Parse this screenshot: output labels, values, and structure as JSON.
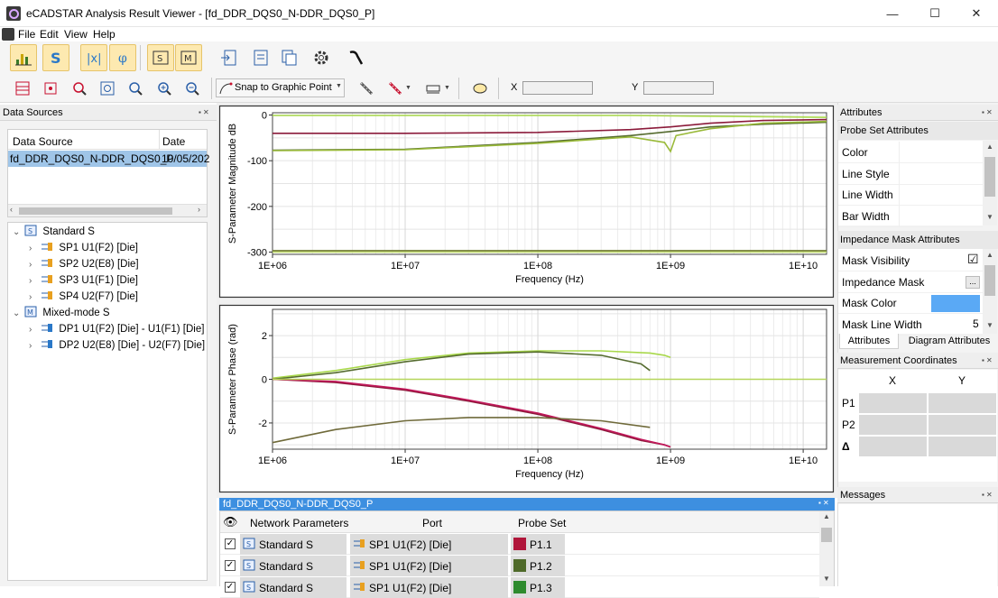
{
  "window": {
    "title": "eCADSTAR Analysis Result Viewer - [fd_DDR_DQS0_N-DDR_DQS0_P]",
    "minimize": "—",
    "maximize": "☐",
    "close": "✕"
  },
  "menu": [
    "File",
    "Edit",
    "View",
    "Help"
  ],
  "toolbar": {
    "snap_label": "Snap to Graphic Point",
    "x_label": "X",
    "y_label": "Y",
    "x_value": "",
    "y_value": ""
  },
  "data_sources": {
    "title": "Data Sources",
    "col_source": "Data Source",
    "col_date": "Date",
    "row_source": "fd_DDR_DQS0_N-DDR_DQS0_P",
    "row_date": "10/05/202",
    "tree": [
      {
        "label": "Standard S",
        "level": 0
      },
      {
        "label": "SP1 U1(F2) [Die]",
        "level": 1
      },
      {
        "label": "SP2 U2(E8) [Die]",
        "level": 1
      },
      {
        "label": "SP3 U1(F1) [Die]",
        "level": 1
      },
      {
        "label": "SP4 U2(F7) [Die]",
        "level": 1
      },
      {
        "label": "Mixed-mode S",
        "level": 0
      },
      {
        "label": "DP1 U1(F2) [Die] - U1(F1) [Die]",
        "level": 1
      },
      {
        "label": "DP2 U2(E8) [Die] - U2(F7) [Die]",
        "level": 1
      }
    ]
  },
  "chart_data": [
    {
      "type": "line",
      "title": "",
      "xlabel": "Frequency (Hz)",
      "ylabel": "S-Parameter Magnitude dB",
      "x_scale": "log",
      "x_ticks": [
        "1E+06",
        "1E+07",
        "1E+08",
        "1E+09",
        "1E+10"
      ],
      "y_ticks": [
        "0",
        "-100",
        "-200",
        "-300"
      ],
      "ylim": [
        -305,
        5
      ],
      "xlim": [
        1000000,
        15000000000
      ],
      "grid": true,
      "series": [
        {
          "color": "#a8d84a",
          "x": [
            1000000.0,
            10000000.0,
            100000000.0,
            500000000.0,
            1000000000.0,
            3000000000.0,
            15000000000.0
          ],
          "y": [
            -1,
            -1,
            -1,
            -1,
            -2,
            -3,
            -5
          ]
        },
        {
          "color": "#8b1a3a",
          "x": [
            1000000.0,
            10000000.0,
            100000000.0,
            500000000.0,
            1000000000.0,
            2000000000.0,
            5000000000.0,
            15000000000.0
          ],
          "y": [
            -40,
            -40,
            -38,
            -32,
            -26,
            -18,
            -12,
            -10
          ]
        },
        {
          "color": "#556b2f",
          "x": [
            1000000.0,
            10000000.0,
            100000000.0,
            500000000.0,
            1000000000.0,
            2000000000.0,
            5000000000.0,
            15000000000.0
          ],
          "y": [
            -77,
            -75,
            -60,
            -45,
            -36,
            -26,
            -20,
            -16
          ]
        },
        {
          "color": "#9aba3a",
          "x": [
            1000000.0,
            10000000.0,
            100000000.0,
            500000000.0,
            900000000.0,
            1000000000.0,
            1100000000.0,
            2000000000.0,
            5000000000.0,
            15000000000.0
          ],
          "y": [
            -78,
            -76,
            -62,
            -48,
            -60,
            -80,
            -45,
            -30,
            -18,
            -14
          ]
        },
        {
          "color": "#c4e070",
          "x": [
            1000000.0,
            10000000.0,
            100000000.0,
            1000000000.0,
            15000000000.0
          ],
          "y": [
            -300,
            -300,
            -300,
            -300,
            -300
          ]
        },
        {
          "color": "#6f7a2f",
          "x": [
            1000000.0,
            10000000.0,
            100000000.0,
            1000000000.0,
            15000000000.0
          ],
          "y": [
            -297,
            -297,
            -297,
            -297,
            -297
          ]
        }
      ]
    },
    {
      "type": "line",
      "title": "",
      "xlabel": "Frequency (Hz)",
      "ylabel": "S-Parameter Phase (rad)",
      "x_scale": "log",
      "x_ticks": [
        "1E+06",
        "1E+07",
        "1E+08",
        "1E+09",
        "1E+10"
      ],
      "y_ticks": [
        "2",
        "0",
        "-2"
      ],
      "ylim": [
        -3.2,
        3.2
      ],
      "xlim": [
        1000000,
        15000000000
      ],
      "grid": true,
      "series": [
        {
          "color": "#a8d84a",
          "x": [
            1000000.0,
            3000000.0,
            10000000.0,
            30000000.0,
            100000000.0,
            300000000.0,
            700000000.0,
            900000000.0,
            1000000000.0
          ],
          "y": [
            0.05,
            0.4,
            0.9,
            1.2,
            1.3,
            1.3,
            1.2,
            1.1,
            1.0
          ]
        },
        {
          "color": "#556b2f",
          "x": [
            1000000.0,
            3000000.0,
            10000000.0,
            30000000.0,
            100000000.0,
            300000000.0,
            600000000.0,
            700000000.0
          ],
          "y": [
            0.0,
            0.3,
            0.8,
            1.15,
            1.25,
            1.1,
            0.7,
            0.4
          ]
        },
        {
          "color": "#8b1a3a",
          "x": [
            1000000.0,
            3000000.0,
            10000000.0,
            30000000.0,
            100000000.0,
            300000000.0,
            600000000.0,
            900000000.0,
            1000000000.0
          ],
          "y": [
            0.0,
            -0.15,
            -0.5,
            -1.0,
            -1.6,
            -2.3,
            -2.8,
            -3.0,
            -3.1
          ]
        },
        {
          "color": "#c2185b",
          "x": [
            1000000.0,
            3000000.0,
            10000000.0,
            30000000.0,
            100000000.0,
            300000000.0,
            600000000.0,
            900000000.0,
            1000000000.0
          ],
          "y": [
            0.0,
            -0.1,
            -0.45,
            -0.95,
            -1.55,
            -2.25,
            -2.75,
            -3.0,
            -3.1
          ]
        },
        {
          "color": "#6f6a3a",
          "x": [
            1000000.0,
            3000000.0,
            10000000.0,
            30000000.0,
            100000000.0,
            300000000.0,
            700000000.0
          ],
          "y": [
            -2.9,
            -2.3,
            -1.9,
            -1.75,
            -1.75,
            -1.9,
            -2.2
          ]
        },
        {
          "color": "#b5d65a",
          "x": [
            1000000.0,
            10000000.0,
            100000000.0,
            1000000000.0,
            15000000000.0
          ],
          "y": [
            0.0,
            0.0,
            0.0,
            0.0,
            0.0
          ]
        }
      ]
    }
  ],
  "bottom_panel": {
    "title": "fd_DDR_DQS0_N-DDR_DQS0_P",
    "col_network": "Network Parameters",
    "col_port": "Port",
    "col_probe": "Probe Set",
    "rows": [
      {
        "network": "Standard S",
        "port": "SP1 U1(F2) [Die]",
        "probe": "P1.1",
        "color": "#b0153a"
      },
      {
        "network": "Standard S",
        "port": "SP1 U1(F2) [Die]",
        "probe": "P1.2",
        "color": "#4f6a2a"
      },
      {
        "network": "Standard S",
        "port": "SP1 U1(F2) [Die]",
        "probe": "P1.3",
        "color": "#2e8b2e"
      }
    ]
  },
  "attributes": {
    "title": "Attributes",
    "probe_section": "Probe Set Attributes",
    "probe_rows": [
      "Color",
      "Line Style",
      "Line Width",
      "Bar Width"
    ],
    "mask_section": "Impedance Mask Attributes",
    "mask_rows": [
      {
        "label": "Mask Visibility",
        "value": "☑"
      },
      {
        "label": "Impedance Mask",
        "value": "..."
      },
      {
        "label": "Mask Color",
        "value": ""
      },
      {
        "label": "Mask Line Width",
        "value": "5"
      }
    ],
    "mask_color": "#5aa9f5",
    "tab_attributes": "Attributes",
    "tab_diagram": "Diagram Attributes"
  },
  "measurement": {
    "title": "Measurement Coordinates",
    "col_x": "X",
    "col_y": "Y",
    "rows": [
      "P1",
      "P2",
      "Δ"
    ]
  },
  "messages": {
    "title": "Messages"
  }
}
